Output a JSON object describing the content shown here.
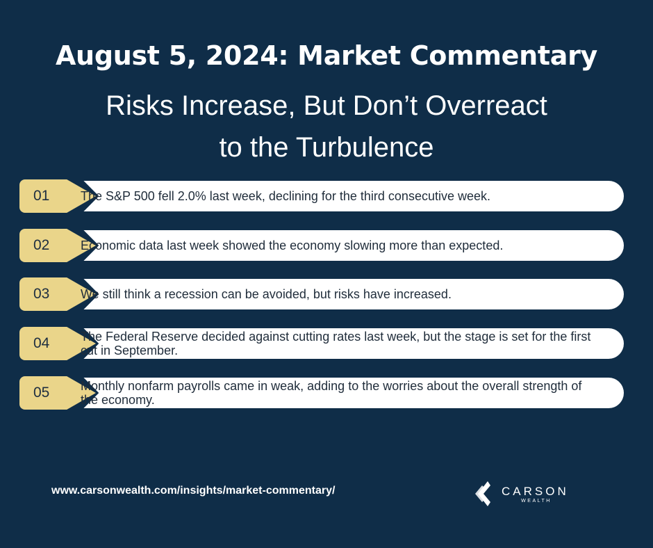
{
  "header": {
    "title": "August 5, 2024: Market Commentary",
    "subtitle_line1": "Risks Increase, But Don’t Overreact",
    "subtitle_line2": "to the Turbulence"
  },
  "items": [
    {
      "number": "01",
      "text": "The S&P 500 fell 2.0% last week, declining for the third consecutive week."
    },
    {
      "number": "02",
      "text": "Economic data last week showed the economy slowing more than expected."
    },
    {
      "number": "03",
      "text": "We still think a recession can be avoided, but risks have increased."
    },
    {
      "number": "04",
      "text": "The Federal Reserve decided against cutting rates last week, but the stage is set for the first cut in September."
    },
    {
      "number": "05",
      "text": "Monthly nonfarm payrolls came in weak, adding to the worries about the overall strength of the economy."
    }
  ],
  "footer": {
    "url": "www.carsonwealth.com/insights/market-commentary/",
    "logo_name": "CARSON",
    "logo_sub": "WEALTH"
  },
  "colors": {
    "background": "#0f2d48",
    "number_tab": "#ead58a",
    "pill": "#ffffff",
    "text_dark": "#1f2c3a"
  },
  "icons": {
    "logo": "carson-wealth-logo-icon"
  }
}
